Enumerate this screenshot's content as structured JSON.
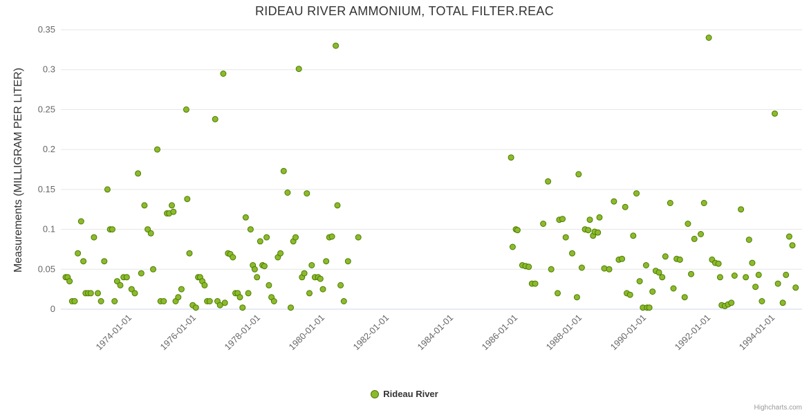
{
  "credits": "Highcharts.com",
  "chart_data": {
    "type": "scatter",
    "title": "RIDEAU RIVER AMMONIUM, TOTAL FILTER.REAC",
    "xlabel": "",
    "ylabel": "Measurements (MILLIGRAM PER LITER)",
    "xlim": [
      1971.85,
      1994.9
    ],
    "ylim": [
      0,
      0.35
    ],
    "grid": true,
    "legend_position": "bottom-center",
    "y_ticks": [
      {
        "value": 0,
        "label": "0"
      },
      {
        "value": 0.05,
        "label": "0.05"
      },
      {
        "value": 0.1,
        "label": "0.1"
      },
      {
        "value": 0.15,
        "label": "0.15"
      },
      {
        "value": 0.2,
        "label": "0.2"
      },
      {
        "value": 0.25,
        "label": "0.25"
      },
      {
        "value": 0.3,
        "label": "0.3"
      },
      {
        "value": 0.35,
        "label": "0.35"
      }
    ],
    "x_ticks": [
      {
        "value": 1974,
        "label": "1974-01-01"
      },
      {
        "value": 1976,
        "label": "1976-01-01"
      },
      {
        "value": 1978,
        "label": "1978-01-01"
      },
      {
        "value": 1980,
        "label": "1980-01-01"
      },
      {
        "value": 1982,
        "label": "1982-01-01"
      },
      {
        "value": 1984,
        "label": "1984-01-01"
      },
      {
        "value": 1986,
        "label": "1986-01-01"
      },
      {
        "value": 1988,
        "label": "1988-01-01"
      },
      {
        "value": 1990,
        "label": "1990-01-01"
      },
      {
        "value": 1992,
        "label": "1992-01-01"
      },
      {
        "value": 1994,
        "label": "1994-01-01"
      }
    ],
    "series": [
      {
        "name": "Rideau River",
        "color": "#8bbb2c",
        "border": "#4e7a00",
        "marker_radius": 4,
        "points": [
          [
            1972.0,
            0.04
          ],
          [
            1972.06,
            0.04
          ],
          [
            1972.12,
            0.035
          ],
          [
            1972.2,
            0.01
          ],
          [
            1972.28,
            0.01
          ],
          [
            1972.38,
            0.07
          ],
          [
            1972.48,
            0.11
          ],
          [
            1972.55,
            0.06
          ],
          [
            1972.62,
            0.02
          ],
          [
            1972.7,
            0.02
          ],
          [
            1972.78,
            0.02
          ],
          [
            1972.88,
            0.09
          ],
          [
            1973.0,
            0.02
          ],
          [
            1973.1,
            0.01
          ],
          [
            1973.2,
            0.06
          ],
          [
            1973.3,
            0.15
          ],
          [
            1973.38,
            0.1
          ],
          [
            1973.45,
            0.1
          ],
          [
            1973.52,
            0.01
          ],
          [
            1973.6,
            0.035
          ],
          [
            1973.7,
            0.03
          ],
          [
            1973.8,
            0.04
          ],
          [
            1973.9,
            0.04
          ],
          [
            1974.05,
            0.025
          ],
          [
            1974.15,
            0.02
          ],
          [
            1974.25,
            0.17
          ],
          [
            1974.35,
            0.045
          ],
          [
            1974.45,
            0.13
          ],
          [
            1974.55,
            0.1
          ],
          [
            1974.65,
            0.095
          ],
          [
            1974.72,
            0.05
          ],
          [
            1974.85,
            0.2
          ],
          [
            1974.95,
            0.01
          ],
          [
            1975.05,
            0.01
          ],
          [
            1975.15,
            0.12
          ],
          [
            1975.22,
            0.12
          ],
          [
            1975.3,
            0.13
          ],
          [
            1975.35,
            0.122
          ],
          [
            1975.42,
            0.01
          ],
          [
            1975.5,
            0.015
          ],
          [
            1975.6,
            0.025
          ],
          [
            1975.75,
            0.25
          ],
          [
            1975.78,
            0.138
          ],
          [
            1975.85,
            0.07
          ],
          [
            1975.95,
            0.005
          ],
          [
            1976.05,
            0.002
          ],
          [
            1976.12,
            0.04
          ],
          [
            1976.18,
            0.04
          ],
          [
            1976.25,
            0.035
          ],
          [
            1976.32,
            0.03
          ],
          [
            1976.4,
            0.01
          ],
          [
            1976.48,
            0.01
          ],
          [
            1976.65,
            0.238
          ],
          [
            1976.72,
            0.01
          ],
          [
            1976.8,
            0.005
          ],
          [
            1976.9,
            0.295
          ],
          [
            1976.95,
            0.008
          ],
          [
            1977.05,
            0.07
          ],
          [
            1977.12,
            0.069
          ],
          [
            1977.2,
            0.065
          ],
          [
            1977.28,
            0.02
          ],
          [
            1977.35,
            0.02
          ],
          [
            1977.42,
            0.015
          ],
          [
            1977.5,
            0.002
          ],
          [
            1977.6,
            0.115
          ],
          [
            1977.68,
            0.02
          ],
          [
            1977.75,
            0.1
          ],
          [
            1977.82,
            0.055
          ],
          [
            1977.88,
            0.05
          ],
          [
            1977.95,
            0.04
          ],
          [
            1978.05,
            0.085
          ],
          [
            1978.12,
            0.055
          ],
          [
            1978.18,
            0.054
          ],
          [
            1978.25,
            0.09
          ],
          [
            1978.32,
            0.03
          ],
          [
            1978.4,
            0.015
          ],
          [
            1978.48,
            0.01
          ],
          [
            1978.6,
            0.065
          ],
          [
            1978.68,
            0.07
          ],
          [
            1978.78,
            0.173
          ],
          [
            1978.9,
            0.146
          ],
          [
            1979.0,
            0.002
          ],
          [
            1979.08,
            0.085
          ],
          [
            1979.15,
            0.09
          ],
          [
            1979.25,
            0.301
          ],
          [
            1979.35,
            0.04
          ],
          [
            1979.42,
            0.045
          ],
          [
            1979.5,
            0.145
          ],
          [
            1979.58,
            0.02
          ],
          [
            1979.65,
            0.055
          ],
          [
            1979.75,
            0.04
          ],
          [
            1979.85,
            0.04
          ],
          [
            1979.92,
            0.038
          ],
          [
            1980.0,
            0.025
          ],
          [
            1980.1,
            0.06
          ],
          [
            1980.2,
            0.09
          ],
          [
            1980.28,
            0.091
          ],
          [
            1980.4,
            0.33
          ],
          [
            1980.45,
            0.13
          ],
          [
            1980.55,
            0.03
          ],
          [
            1980.65,
            0.01
          ],
          [
            1980.78,
            0.06
          ],
          [
            1981.1,
            0.09
          ],
          [
            1985.85,
            0.19
          ],
          [
            1985.9,
            0.078
          ],
          [
            1986.0,
            0.1
          ],
          [
            1986.05,
            0.099
          ],
          [
            1986.2,
            0.055
          ],
          [
            1986.3,
            0.054
          ],
          [
            1986.4,
            0.053
          ],
          [
            1986.5,
            0.032
          ],
          [
            1986.6,
            0.032
          ],
          [
            1986.85,
            0.107
          ],
          [
            1987.0,
            0.16
          ],
          [
            1987.1,
            0.05
          ],
          [
            1987.3,
            0.02
          ],
          [
            1987.35,
            0.112
          ],
          [
            1987.45,
            0.113
          ],
          [
            1987.55,
            0.09
          ],
          [
            1987.75,
            0.07
          ],
          [
            1987.9,
            0.015
          ],
          [
            1987.95,
            0.169
          ],
          [
            1988.05,
            0.052
          ],
          [
            1988.15,
            0.1
          ],
          [
            1988.25,
            0.099
          ],
          [
            1988.3,
            0.112
          ],
          [
            1988.4,
            0.092
          ],
          [
            1988.45,
            0.097
          ],
          [
            1988.55,
            0.096
          ],
          [
            1988.6,
            0.115
          ],
          [
            1988.75,
            0.051
          ],
          [
            1988.9,
            0.05
          ],
          [
            1989.05,
            0.135
          ],
          [
            1989.2,
            0.062
          ],
          [
            1989.3,
            0.063
          ],
          [
            1989.4,
            0.128
          ],
          [
            1989.45,
            0.02
          ],
          [
            1989.55,
            0.018
          ],
          [
            1989.65,
            0.092
          ],
          [
            1989.75,
            0.145
          ],
          [
            1989.85,
            0.035
          ],
          [
            1989.95,
            0.002
          ],
          [
            1990.05,
            0.055
          ],
          [
            1990.08,
            0.002
          ],
          [
            1990.15,
            0.002
          ],
          [
            1990.25,
            0.022
          ],
          [
            1990.35,
            0.048
          ],
          [
            1990.45,
            0.046
          ],
          [
            1990.55,
            0.04
          ],
          [
            1990.65,
            0.066
          ],
          [
            1990.8,
            0.133
          ],
          [
            1990.9,
            0.026
          ],
          [
            1991.0,
            0.063
          ],
          [
            1991.1,
            0.062
          ],
          [
            1991.25,
            0.015
          ],
          [
            1991.35,
            0.107
          ],
          [
            1991.45,
            0.044
          ],
          [
            1991.55,
            0.088
          ],
          [
            1991.75,
            0.094
          ],
          [
            1991.85,
            0.133
          ],
          [
            1992.0,
            0.34
          ],
          [
            1992.1,
            0.062
          ],
          [
            1992.2,
            0.058
          ],
          [
            1992.3,
            0.057
          ],
          [
            1992.35,
            0.04
          ],
          [
            1992.4,
            0.005
          ],
          [
            1992.5,
            0.004
          ],
          [
            1992.6,
            0.006
          ],
          [
            1992.7,
            0.008
          ],
          [
            1992.8,
            0.042
          ],
          [
            1993.0,
            0.125
          ],
          [
            1993.15,
            0.04
          ],
          [
            1993.25,
            0.087
          ],
          [
            1993.35,
            0.058
          ],
          [
            1993.45,
            0.028
          ],
          [
            1993.55,
            0.043
          ],
          [
            1993.65,
            0.01
          ],
          [
            1994.05,
            0.245
          ],
          [
            1994.15,
            0.032
          ],
          [
            1994.3,
            0.008
          ],
          [
            1994.4,
            0.043
          ],
          [
            1994.5,
            0.091
          ],
          [
            1994.6,
            0.08
          ],
          [
            1994.7,
            0.027
          ]
        ]
      }
    ]
  }
}
